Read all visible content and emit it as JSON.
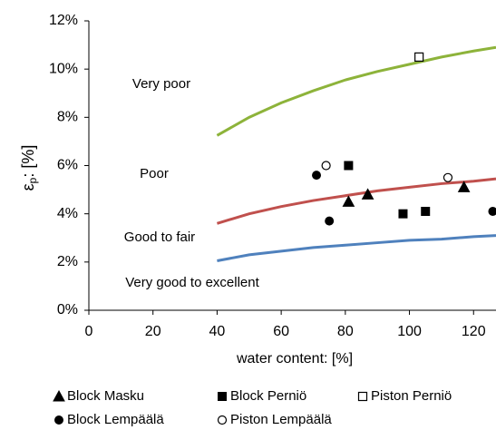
{
  "chart_data": {
    "type": "scatter",
    "x_label": "water content: [%]",
    "y_label": {
      "symbol": "ε",
      "subscript": "p",
      "rest": ": [%]"
    },
    "annotations": [
      "Very poor",
      "Poor",
      "Good to fair",
      "Very good to excellent"
    ],
    "xlim": [
      0,
      127
    ],
    "xticks": [
      0,
      20,
      40,
      60,
      80,
      100,
      120
    ],
    "ylim": [
      0,
      12
    ],
    "yticks": [
      {
        "value": 0,
        "label": "0%"
      },
      {
        "value": 2,
        "label": "2%"
      },
      {
        "value": 4,
        "label": "4%"
      },
      {
        "value": 6,
        "label": "6%"
      },
      {
        "value": 8,
        "label": "8%"
      },
      {
        "value": 10,
        "label": "10%"
      },
      {
        "value": 12,
        "label": "12%"
      }
    ],
    "curves": [
      {
        "color": "#8db33a",
        "x": [
          40,
          50,
          60,
          70,
          80,
          90,
          100,
          110,
          120,
          127
        ],
        "values": [
          7.25,
          8.0,
          8.6,
          9.1,
          9.55,
          9.9,
          10.2,
          10.5,
          10.75,
          10.9
        ]
      },
      {
        "color": "#c0504d",
        "x": [
          40,
          50,
          60,
          70,
          80,
          90,
          100,
          110,
          120,
          127
        ],
        "values": [
          3.6,
          4.0,
          4.3,
          4.55,
          4.75,
          4.95,
          5.1,
          5.25,
          5.35,
          5.45
        ]
      },
      {
        "color": "#4f81bd",
        "x": [
          40,
          50,
          60,
          70,
          80,
          90,
          100,
          110,
          120,
          127
        ],
        "values": [
          2.05,
          2.3,
          2.45,
          2.6,
          2.7,
          2.8,
          2.9,
          2.95,
          3.05,
          3.1
        ]
      }
    ],
    "series": [
      {
        "name": "Block Masku",
        "marker": "triangle",
        "filled": true,
        "color": "#000000",
        "x": [
          81,
          87,
          117
        ],
        "values": [
          4.5,
          4.8,
          5.1
        ]
      },
      {
        "name": "Block Perniö",
        "marker": "square",
        "filled": true,
        "color": "#000000",
        "x": [
          81,
          98,
          105
        ],
        "values": [
          6.0,
          4.0,
          4.1
        ]
      },
      {
        "name": "Piston Perniö",
        "marker": "square",
        "filled": false,
        "color": "#000000",
        "x": [
          103
        ],
        "values": [
          10.5
        ]
      },
      {
        "name": "Block Lempäälä",
        "marker": "circle",
        "filled": true,
        "color": "#000000",
        "x": [
          71,
          75,
          126
        ],
        "values": [
          5.6,
          3.7,
          4.1
        ]
      },
      {
        "name": "Piston Lempäälä",
        "marker": "circle",
        "filled": false,
        "color": "#000000",
        "x": [
          74,
          112
        ],
        "values": [
          6.0,
          5.5
        ]
      }
    ]
  }
}
